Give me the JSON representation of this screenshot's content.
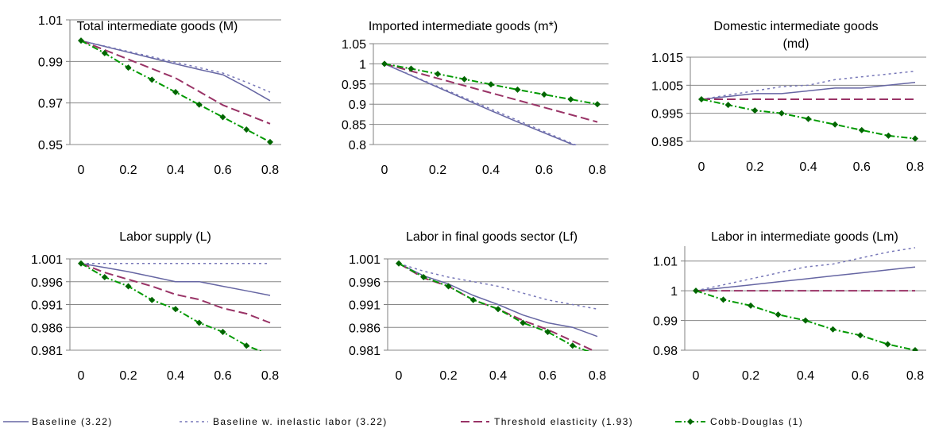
{
  "legend": {
    "baseline": "Baseline (3.22)",
    "baseline_inelastic": "Baseline w. inelastic labor (3.22)",
    "threshold": "Threshold elasticity (1.93)",
    "cobb_douglas": "Cobb-Douglas (1)"
  },
  "colors": {
    "baseline": "#6666a3",
    "baseline_inelastic": "#7777b8",
    "threshold": "#993366",
    "cobb_douglas": "#009900",
    "marker": "#006600",
    "grid": "#888888",
    "axis": "#808080"
  },
  "chart_data": [
    {
      "type": "line",
      "title": [
        "Total intermediate goods (M)"
      ],
      "ylim": [
        0.95,
        1.01
      ],
      "yticks": [
        "1.01",
        "0.99",
        "0.97",
        "0.95"
      ],
      "xticks": [
        "0",
        "0.2",
        "0.4",
        "0.6",
        "0.8"
      ],
      "series": [
        {
          "key": "baseline",
          "x": [
            0,
            0.1,
            0.2,
            0.3,
            0.4,
            0.5,
            0.6,
            0.7,
            0.8
          ],
          "y": [
            1.0,
            0.9972,
            0.9944,
            0.9916,
            0.9888,
            0.9861,
            0.9836,
            0.9776,
            0.9711
          ]
        },
        {
          "key": "baseline_inelastic",
          "x": [
            0,
            0.1,
            0.2,
            0.3,
            0.4,
            0.5,
            0.6,
            0.7,
            0.8
          ],
          "y": [
            1.0,
            0.9974,
            0.9948,
            0.9922,
            0.9896,
            0.987,
            0.9844,
            0.98,
            0.9752
          ]
        },
        {
          "key": "threshold",
          "x": [
            0,
            0.1,
            0.2,
            0.3,
            0.4,
            0.5,
            0.6,
            0.7,
            0.8
          ],
          "y": [
            1.0,
            0.9955,
            0.991,
            0.9865,
            0.982,
            0.9755,
            0.969,
            0.9645,
            0.96
          ]
        },
        {
          "key": "cobb_douglas",
          "x": [
            0,
            0.1,
            0.2,
            0.3,
            0.4,
            0.5,
            0.6,
            0.7,
            0.8
          ],
          "y": [
            1.0,
            0.994,
            0.987,
            0.9812,
            0.9752,
            0.9692,
            0.9632,
            0.9572,
            0.9512
          ]
        }
      ]
    },
    {
      "type": "line",
      "title": [
        "Imported intermediate goods (m*)"
      ],
      "ylim": [
        0.8,
        1.05
      ],
      "yticks": [
        "1.05",
        "1",
        "0.95",
        "0.9",
        "0.85",
        "0.8"
      ],
      "xticks": [
        "0",
        "0.2",
        "0.4",
        "0.6",
        "0.8"
      ],
      "series": [
        {
          "key": "baseline",
          "x": [
            0,
            0.1,
            0.2,
            0.3,
            0.4,
            0.5,
            0.6,
            0.7,
            0.75
          ],
          "y": [
            1.0,
            0.971,
            0.942,
            0.913,
            0.884,
            0.856,
            0.829,
            0.802,
            0.788
          ]
        },
        {
          "key": "baseline_inelastic",
          "x": [
            0,
            0.1,
            0.2,
            0.3,
            0.4,
            0.5,
            0.6,
            0.7,
            0.8
          ],
          "y": [
            1.0,
            0.972,
            0.944,
            0.916,
            0.888,
            0.86,
            0.832,
            0.804,
            0.778
          ]
        },
        {
          "key": "threshold",
          "x": [
            0,
            0.1,
            0.2,
            0.3,
            0.4,
            0.5,
            0.6,
            0.7,
            0.8
          ],
          "y": [
            1.0,
            0.982,
            0.964,
            0.946,
            0.928,
            0.91,
            0.892,
            0.874,
            0.856
          ]
        },
        {
          "key": "cobb_douglas",
          "x": [
            0,
            0.1,
            0.2,
            0.3,
            0.4,
            0.5,
            0.6,
            0.7,
            0.8
          ],
          "y": [
            1.0,
            0.988,
            0.975,
            0.962,
            0.949,
            0.936,
            0.924,
            0.912,
            0.9
          ]
        }
      ]
    },
    {
      "type": "line",
      "title": [
        "Domestic intermediate goods",
        "(md)"
      ],
      "ylim": [
        0.985,
        1.015
      ],
      "yticks": [
        "1.015",
        "1.005",
        "0.995",
        "0.985"
      ],
      "xticks": [
        "0",
        "0.2",
        "0.4",
        "0.6",
        "0.8"
      ],
      "series": [
        {
          "key": "baseline",
          "x": [
            0,
            0.1,
            0.2,
            0.3,
            0.4,
            0.5,
            0.6,
            0.7,
            0.8
          ],
          "y": [
            1.0,
            1.001,
            1.002,
            1.002,
            1.003,
            1.004,
            1.004,
            1.005,
            1.006
          ]
        },
        {
          "key": "baseline_inelastic",
          "x": [
            0,
            0.1,
            0.2,
            0.3,
            0.4,
            0.5,
            0.6,
            0.7,
            0.8
          ],
          "y": [
            1.0,
            1.0015,
            1.003,
            1.0045,
            1.005,
            1.007,
            1.008,
            1.009,
            1.01
          ]
        },
        {
          "key": "threshold",
          "x": [
            0,
            0.1,
            0.2,
            0.3,
            0.4,
            0.5,
            0.6,
            0.7,
            0.8
          ],
          "y": [
            1.0,
            1.0,
            1.0,
            1.0,
            1.0,
            1.0,
            1.0,
            1.0,
            1.0
          ]
        },
        {
          "key": "cobb_douglas",
          "x": [
            0,
            0.1,
            0.2,
            0.3,
            0.4,
            0.5,
            0.6,
            0.7,
            0.8
          ],
          "y": [
            1.0,
            0.998,
            0.996,
            0.995,
            0.993,
            0.991,
            0.989,
            0.987,
            0.986
          ]
        }
      ]
    },
    {
      "type": "line",
      "title": [
        "Labor supply (L)"
      ],
      "ylim": [
        0.981,
        1.001
      ],
      "yticks": [
        "1.001",
        "0.996",
        "0.991",
        "0.986",
        "0.981"
      ],
      "xticks": [
        "0",
        "0.2",
        "0.4",
        "0.6",
        "0.8"
      ],
      "series": [
        {
          "key": "baseline",
          "x": [
            0,
            0.1,
            0.2,
            0.3,
            0.4,
            0.5,
            0.6,
            0.7,
            0.8
          ],
          "y": [
            1.0,
            0.9991,
            0.9982,
            0.9971,
            0.996,
            0.996,
            0.995,
            0.994,
            0.993
          ]
        },
        {
          "key": "baseline_inelastic",
          "x": [
            0,
            0.1,
            0.2,
            0.3,
            0.4,
            0.5,
            0.6,
            0.7,
            0.8
          ],
          "y": [
            1.0,
            1.0,
            1.0,
            1.0,
            1.0,
            1.0,
            1.0,
            1.0,
            1.0
          ]
        },
        {
          "key": "threshold",
          "x": [
            0,
            0.1,
            0.2,
            0.3,
            0.4,
            0.5,
            0.6,
            0.7,
            0.8
          ],
          "y": [
            1.0,
            0.998,
            0.9965,
            0.995,
            0.9932,
            0.9921,
            0.9902,
            0.989,
            0.987
          ]
        },
        {
          "key": "cobb_douglas",
          "x": [
            0,
            0.1,
            0.2,
            0.3,
            0.4,
            0.5,
            0.6,
            0.7,
            0.8
          ],
          "y": [
            1.0,
            0.997,
            0.995,
            0.992,
            0.99,
            0.987,
            0.985,
            0.982,
            0.98
          ]
        }
      ]
    },
    {
      "type": "line",
      "title": [
        "Labor in final goods sector (Lf)"
      ],
      "ylim": [
        0.981,
        1.001
      ],
      "yticks": [
        "1.001",
        "0.996",
        "0.991",
        "0.986",
        "0.981"
      ],
      "xticks": [
        "0",
        "0.2",
        "0.4",
        "0.6",
        "0.8"
      ],
      "series": [
        {
          "key": "baseline",
          "x": [
            0,
            0.1,
            0.2,
            0.3,
            0.4,
            0.5,
            0.6,
            0.7,
            0.8
          ],
          "y": [
            1.0,
            0.9973,
            0.9955,
            0.993,
            0.991,
            0.9887,
            0.987,
            0.986,
            0.984
          ]
        },
        {
          "key": "baseline_inelastic",
          "x": [
            0,
            0.1,
            0.2,
            0.3,
            0.4,
            0.5,
            0.6,
            0.7,
            0.8
          ],
          "y": [
            1.0,
            0.9983,
            0.997,
            0.996,
            0.995,
            0.9935,
            0.992,
            0.991,
            0.99
          ]
        },
        {
          "key": "threshold",
          "x": [
            0,
            0.1,
            0.2,
            0.3,
            0.4,
            0.5,
            0.6,
            0.7,
            0.8
          ],
          "y": [
            1.0,
            0.9968,
            0.995,
            0.992,
            0.99,
            0.9875,
            0.9855,
            0.983,
            0.9805
          ]
        },
        {
          "key": "cobb_douglas",
          "x": [
            0,
            0.1,
            0.2,
            0.3,
            0.4,
            0.5,
            0.6,
            0.7,
            0.8
          ],
          "y": [
            1.0,
            0.997,
            0.995,
            0.992,
            0.99,
            0.987,
            0.985,
            0.982,
            0.98
          ]
        }
      ]
    },
    {
      "type": "line",
      "title": [
        "Labor in intermediate goods (Lm)"
      ],
      "ylim": [
        0.98,
        1.015
      ],
      "yticks": [
        "1.01",
        "1",
        "0.99",
        "0.98"
      ],
      "xticks": [
        "0",
        "0.2",
        "0.4",
        "0.6",
        "0.8"
      ],
      "series": [
        {
          "key": "baseline",
          "x": [
            0,
            0.1,
            0.2,
            0.3,
            0.4,
            0.5,
            0.6,
            0.7,
            0.8
          ],
          "y": [
            1.0,
            1.001,
            1.002,
            1.003,
            1.004,
            1.005,
            1.006,
            1.007,
            1.008
          ]
        },
        {
          "key": "baseline_inelastic",
          "x": [
            0,
            0.1,
            0.2,
            0.3,
            0.4,
            0.5,
            0.6,
            0.7,
            0.8
          ],
          "y": [
            1.0,
            1.002,
            1.004,
            1.006,
            1.008,
            1.009,
            1.011,
            1.013,
            1.0145
          ]
        },
        {
          "key": "threshold",
          "x": [
            0,
            0.1,
            0.2,
            0.3,
            0.4,
            0.5,
            0.6,
            0.7,
            0.8
          ],
          "y": [
            1.0,
            1.0,
            1.0,
            1.0,
            1.0,
            1.0,
            1.0,
            1.0,
            1.0
          ]
        },
        {
          "key": "cobb_douglas",
          "x": [
            0,
            0.1,
            0.2,
            0.3,
            0.4,
            0.5,
            0.6,
            0.7,
            0.8
          ],
          "y": [
            1.0,
            0.997,
            0.995,
            0.992,
            0.99,
            0.987,
            0.985,
            0.982,
            0.98
          ]
        }
      ]
    }
  ]
}
